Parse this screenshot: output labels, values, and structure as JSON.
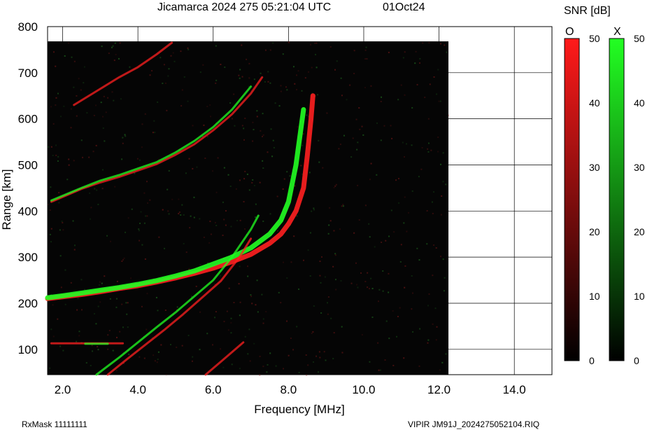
{
  "header": {
    "title": "Jicamarca 2024 275 05:21:04 UTC",
    "date": "01Oct24"
  },
  "footer": {
    "rxmask": "RxMask 11111111",
    "file": "VIPIR  JM91J_2024275052104.RIQ"
  },
  "colorbar": {
    "title": "SNR [dB]",
    "o_label": "O",
    "x_label": "X",
    "ticks": [
      "0",
      "10",
      "20",
      "30",
      "40",
      "50"
    ],
    "o_color": "#ff1a1a",
    "x_color": "#22ff22"
  },
  "chart_data": {
    "type": "scatter",
    "title": "",
    "xlabel": "Frequency [MHz]",
    "ylabel": "Range [km]",
    "xlim": [
      1.6,
      15.0
    ],
    "ylim": [
      45,
      800
    ],
    "xticks": [
      "2.0",
      "4.0",
      "6.0",
      "8.0",
      "10.0",
      "12.0",
      "14.0"
    ],
    "yticks": [
      "100",
      "200",
      "300",
      "400",
      "500",
      "600",
      "700",
      "800"
    ],
    "data_extent": {
      "freq_max_mhz": 12.25,
      "range_max_km": 768
    },
    "grid": true,
    "series": [
      {
        "name": "O",
        "color": "#ff2020",
        "points": [
          [
            1.6,
            210
          ],
          [
            2.0,
            214
          ],
          [
            2.5,
            219
          ],
          [
            3.0,
            225
          ],
          [
            3.5,
            232
          ],
          [
            4.0,
            238
          ],
          [
            4.5,
            246
          ],
          [
            5.0,
            255
          ],
          [
            5.5,
            265
          ],
          [
            6.0,
            276
          ],
          [
            6.5,
            290
          ],
          [
            7.0,
            306
          ],
          [
            7.5,
            330
          ],
          [
            7.8,
            350
          ],
          [
            8.0,
            372
          ],
          [
            8.2,
            400
          ],
          [
            8.4,
            450
          ],
          [
            8.5,
            520
          ],
          [
            8.6,
            600
          ],
          [
            8.65,
            650
          ]
        ]
      },
      {
        "name": "X",
        "color": "#22ff22",
        "points": [
          [
            1.6,
            212
          ],
          [
            2.0,
            216
          ],
          [
            2.5,
            222
          ],
          [
            3.0,
            228
          ],
          [
            3.5,
            234
          ],
          [
            4.0,
            241
          ],
          [
            4.5,
            249
          ],
          [
            5.0,
            259
          ],
          [
            5.5,
            270
          ],
          [
            6.0,
            285
          ],
          [
            6.5,
            300
          ],
          [
            7.0,
            320
          ],
          [
            7.5,
            350
          ],
          [
            7.8,
            380
          ],
          [
            8.0,
            420
          ],
          [
            8.2,
            500
          ],
          [
            8.3,
            560
          ],
          [
            8.4,
            620
          ]
        ]
      },
      {
        "name": "O",
        "color": "#ff2020",
        "points": [
          [
            1.7,
            420
          ],
          [
            2.5,
            448
          ],
          [
            3.0,
            462
          ],
          [
            3.5,
            474
          ],
          [
            4.0,
            488
          ],
          [
            4.5,
            502
          ],
          [
            5.0,
            522
          ],
          [
            5.5,
            545
          ],
          [
            6.0,
            575
          ],
          [
            6.5,
            610
          ],
          [
            7.0,
            655
          ],
          [
            7.3,
            690
          ]
        ]
      },
      {
        "name": "X",
        "color": "#22ff22",
        "points": [
          [
            1.7,
            423
          ],
          [
            2.5,
            450
          ],
          [
            3.0,
            466
          ],
          [
            3.5,
            478
          ],
          [
            4.0,
            492
          ],
          [
            4.5,
            506
          ],
          [
            5.0,
            527
          ],
          [
            5.5,
            552
          ],
          [
            6.0,
            582
          ],
          [
            6.5,
            620
          ],
          [
            7.0,
            670
          ]
        ]
      },
      {
        "name": "O",
        "color": "#ff2020",
        "points": [
          [
            2.3,
            630
          ],
          [
            3.0,
            665
          ],
          [
            3.5,
            690
          ],
          [
            4.0,
            712
          ],
          [
            4.5,
            740
          ],
          [
            4.9,
            765
          ]
        ]
      },
      {
        "name": "O",
        "color": "#ff2020",
        "points": [
          [
            1.7,
            113
          ],
          [
            3.6,
            113
          ]
        ]
      },
      {
        "name": "X",
        "color": "#22ff22",
        "points": [
          [
            2.6,
            112
          ],
          [
            3.2,
            112
          ]
        ]
      },
      {
        "name": "X",
        "color": "#22ff22",
        "points": [
          [
            2.9,
            45
          ],
          [
            3.5,
            82
          ],
          [
            4.0,
            115
          ],
          [
            4.5,
            148
          ],
          [
            5.0,
            180
          ],
          [
            5.5,
            215
          ],
          [
            6.0,
            250
          ],
          [
            6.5,
            300
          ],
          [
            7.0,
            360
          ],
          [
            7.2,
            390
          ]
        ]
      },
      {
        "name": "O",
        "color": "#ff2020",
        "points": [
          [
            3.2,
            45
          ],
          [
            3.7,
            78
          ],
          [
            4.2,
            110
          ],
          [
            4.7,
            142
          ],
          [
            5.2,
            176
          ],
          [
            5.7,
            212
          ],
          [
            6.2,
            248
          ],
          [
            6.7,
            300
          ],
          [
            7.0,
            340
          ]
        ]
      },
      {
        "name": "O",
        "color": "#ff2020",
        "points": [
          [
            5.8,
            45
          ],
          [
            6.3,
            80
          ],
          [
            6.8,
            115
          ]
        ]
      }
    ]
  }
}
